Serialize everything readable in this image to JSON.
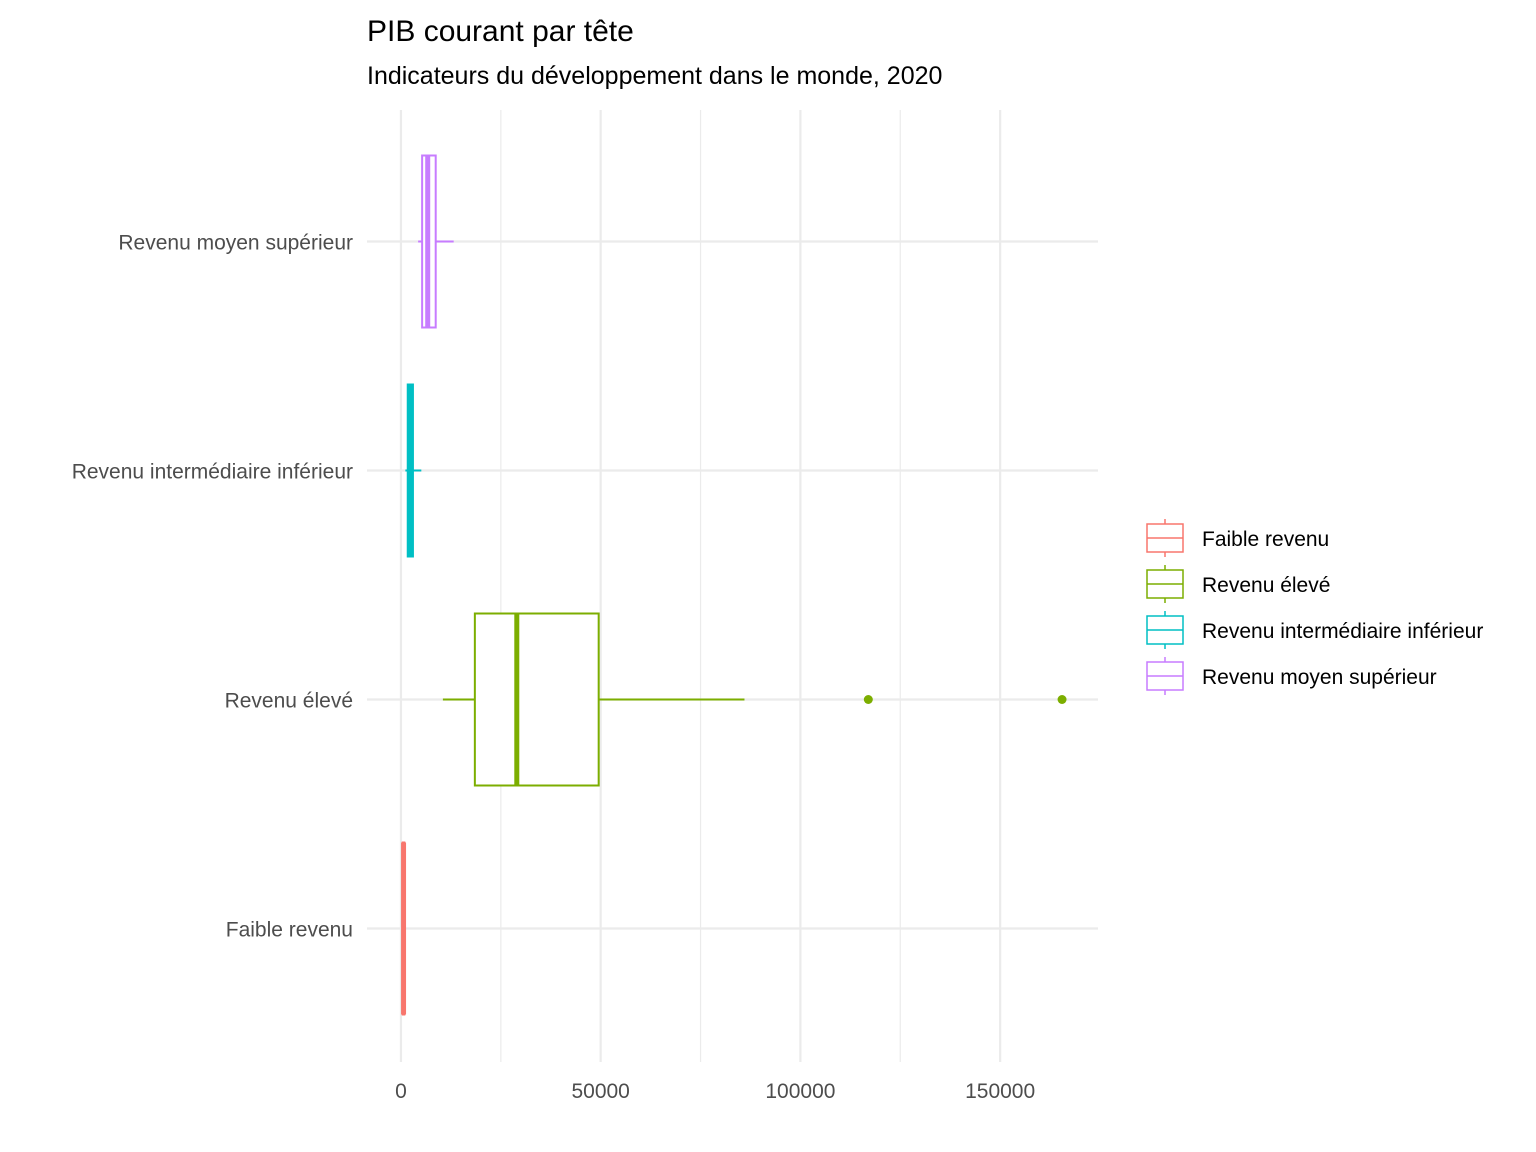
{
  "chart_data": {
    "type": "boxplot",
    "orientation": "horizontal",
    "title": "PIB courant par tête",
    "subtitle": "Indicateurs du développement dans le monde, 2020",
    "xlabel": "",
    "ylabel": "",
    "xlim": [
      -8500,
      174500
    ],
    "x_ticks": [
      {
        "value": 0,
        "label": "0"
      },
      {
        "value": 50000,
        "label": "50000"
      },
      {
        "value": 100000,
        "label": "100000"
      },
      {
        "value": 150000,
        "label": "150000"
      }
    ],
    "x_minor_ticks": [
      25000,
      75000,
      125000
    ],
    "categories": [
      "Faible revenu",
      "Revenu élevé",
      "Revenu intermédiaire inférieur",
      "Revenu moyen supérieur"
    ],
    "series": [
      {
        "name": "Faible revenu",
        "color": "#F8766D",
        "whisker_low": 250,
        "q1": 450,
        "median": 650,
        "q3": 850,
        "whisker_high": 1050,
        "outliers": []
      },
      {
        "name": "Revenu élevé",
        "color": "#7CAE00",
        "whisker_low": 10500,
        "q1": 18500,
        "median": 29000,
        "q3": 49500,
        "whisker_high": 86000,
        "outliers": [
          117000,
          165500
        ]
      },
      {
        "name": "Revenu intermédiaire inférieur",
        "color": "#00BFC4",
        "whisker_low": 1100,
        "q1": 1700,
        "median": 2300,
        "q3": 3000,
        "whisker_high": 5100,
        "outliers": []
      },
      {
        "name": "Revenu moyen supérieur",
        "color": "#C77CFF",
        "whisker_low": 4300,
        "q1": 5300,
        "median": 6700,
        "q3": 8700,
        "whisker_high": 13200,
        "outliers": []
      }
    ],
    "grid": true,
    "legend": "right",
    "legend_entries": [
      "Faible revenu",
      "Revenu élevé",
      "Revenu intermédiaire inférieur",
      "Revenu moyen supérieur"
    ]
  }
}
